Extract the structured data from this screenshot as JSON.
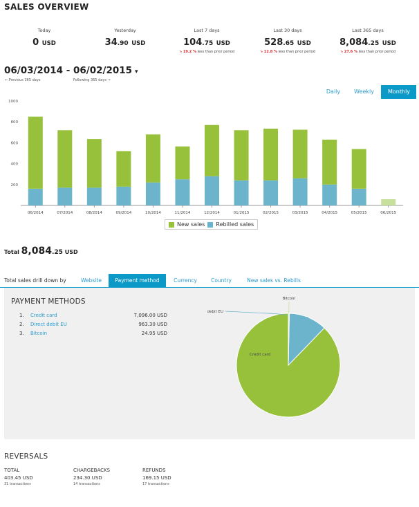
{
  "page_title": "SALES OVERVIEW",
  "stats": [
    {
      "label": "Today",
      "int": "0",
      "dec": "",
      "currency": "USD",
      "change_pct": "",
      "change_text": ""
    },
    {
      "label": "Yesterday",
      "int": "34",
      "dec": ".90",
      "currency": "USD",
      "change_pct": "",
      "change_text": ""
    },
    {
      "label": "Last 7 days",
      "int": "104",
      "dec": ".75",
      "currency": "USD",
      "change_pct": "↘ 19.2 %",
      "change_text": "less than prior period"
    },
    {
      "label": "Last 30 days",
      "int": "528",
      "dec": ".65",
      "currency": "USD",
      "change_pct": "↘ 12.8 %",
      "change_text": "less than prior period"
    },
    {
      "label": "Last 365 days",
      "int": "8,084",
      "dec": ".25",
      "currency": "USD",
      "change_pct": "↘ 27.6 %",
      "change_text": "less than prior period"
    }
  ],
  "date_range": "06/03/2014 - 06/02/2015",
  "date_caret": "▾",
  "nav": {
    "prev": "← Previous 365 days",
    "next": "Following 365 days →"
  },
  "period_tabs": [
    "Daily",
    "Weekly",
    "Monthly"
  ],
  "colors": {
    "new_sales": "#97c03b",
    "rebilled": "#6cb4cc",
    "partial": "#c7e19d",
    "accent": "#0b99c7",
    "link": "#2a9bd0",
    "down": "#d9282d"
  },
  "chart_data": {
    "type": "bar",
    "stacked": true,
    "categories": [
      "06/2014",
      "07/2014",
      "08/2014",
      "09/2014",
      "10/2014",
      "11/2014",
      "12/2014",
      "01/2015",
      "02/2015",
      "03/2015",
      "04/2015",
      "05/2015",
      "06/2015"
    ],
    "series": [
      {
        "name": "Rebilled sales",
        "values": [
          160,
          170,
          170,
          180,
          220,
          250,
          280,
          240,
          240,
          260,
          200,
          160,
          0
        ]
      },
      {
        "name": "New sales",
        "values": [
          690,
          550,
          465,
          340,
          460,
          315,
          490,
          480,
          495,
          465,
          430,
          380,
          60
        ]
      }
    ],
    "ylim": [
      0,
      1000
    ],
    "yticks": [
      200,
      400,
      600,
      800,
      1000
    ],
    "grid": false,
    "legend": "bottom"
  },
  "total": {
    "label": "Total",
    "int": "8,084",
    "dec": ".25",
    "currency": "USD"
  },
  "drill": {
    "label": "Total sales drill down by",
    "tabs": [
      "Website",
      "Payment method",
      "Currency",
      "Country",
      "New sales vs. Rebills"
    ],
    "active": "Payment method"
  },
  "payment_methods": {
    "title": "PAYMENT METHODS",
    "items": [
      {
        "num": "1.",
        "name": "Credit card",
        "amount": "7,096.00 USD",
        "value": 7096.0
      },
      {
        "num": "2.",
        "name": "Direct debit EU",
        "amount": "963.30 USD",
        "value": 963.3
      },
      {
        "num": "3.",
        "name": "Bitcoin",
        "amount": "24.95 USD",
        "value": 24.95
      }
    ]
  },
  "reversals": {
    "title": "REVERSALS",
    "columns": [
      {
        "head": "TOTAL",
        "value": "403.45 USD",
        "tx": "31 transactions"
      },
      {
        "head": "CHARGEBACKS",
        "value": "234.30 USD",
        "tx": "14 transactions"
      },
      {
        "head": "REFUNDS",
        "value": "169.15 USD",
        "tx": "17 transactions"
      }
    ]
  }
}
